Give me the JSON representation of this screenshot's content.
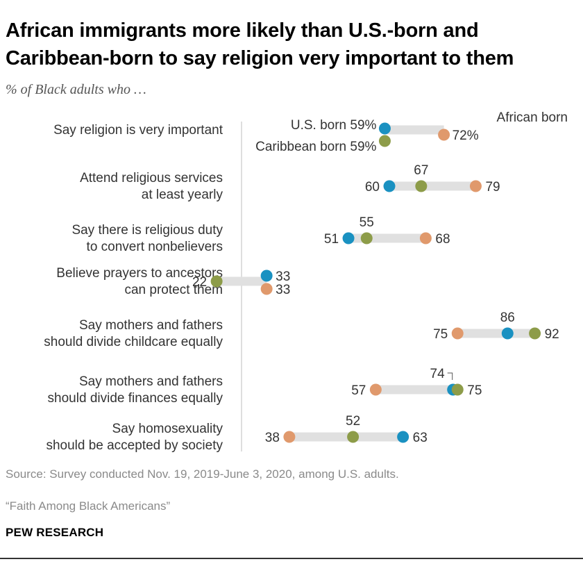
{
  "title": "African immigrants more likely than U.S.-born and Caribbean-born to say religion very important to them",
  "subtitle": "% of Black adults who …",
  "source": "Source: Survey conducted Nov. 19, 2019-June 3, 2020, among U.S. adults.",
  "report": "“Faith Among Black Americans”",
  "brand": "PEW RESEARCH",
  "colors": {
    "us_born": "#1a91c1",
    "caribbean_born": "#8d9c49",
    "african_born": "#e0996c",
    "connector": "#e0e0e0",
    "axis": "#bdbdbd"
  },
  "chart_data": {
    "type": "dot",
    "title": "African immigrants more likely than U.S.-born and Caribbean-born to say religion very important to them",
    "unit": "%",
    "categories": [
      [
        "Say religion is very important"
      ],
      [
        "Attend religious services",
        "at least yearly"
      ],
      [
        "Say there is religious duty",
        "to convert nonbelievers"
      ],
      [
        "Believe prayers to ancestors",
        "can protect them"
      ],
      [
        "Say mothers and fathers",
        "should divide childcare equally"
      ],
      [
        "Say mothers and fathers",
        "should divide finances equally"
      ],
      [
        "Say homosexuality",
        "should be accepted by society"
      ]
    ],
    "series": [
      {
        "name": "U.S. born",
        "key": "us_born",
        "values": [
          59,
          60,
          51,
          33,
          86,
          74,
          63
        ]
      },
      {
        "name": "Caribbean born",
        "key": "caribbean_born",
        "values": [
          59,
          67,
          55,
          22,
          92,
          75,
          52
        ]
      },
      {
        "name": "African born",
        "key": "african_born",
        "values": [
          72,
          79,
          68,
          33,
          75,
          57,
          38
        ]
      }
    ],
    "labels": [
      {
        "us_born": "U.S. born 59%",
        "caribbean_born": "Caribbean born 59%",
        "african_born": "72%",
        "african_legend": "African born"
      },
      {
        "us_born": "60",
        "caribbean_born": "67",
        "african_born": "79"
      },
      {
        "us_born": "51",
        "caribbean_born": "55",
        "african_born": "68"
      },
      {
        "us_born": "33",
        "caribbean_born": "22",
        "african_born": "33"
      },
      {
        "us_born": "86",
        "caribbean_born": "92",
        "african_born": "75"
      },
      {
        "us_born": "74",
        "caribbean_born": "75",
        "african_born": "57"
      },
      {
        "us_born": "63",
        "caribbean_born": "52",
        "african_born": "38"
      }
    ]
  }
}
